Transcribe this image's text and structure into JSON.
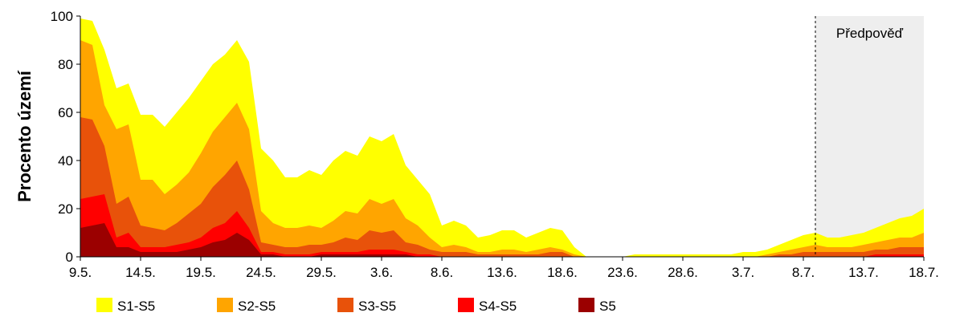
{
  "chart_data": {
    "type": "area",
    "stacked_cumulative": true,
    "ylabel": "Procento území",
    "ylim": [
      0,
      100
    ],
    "yticks": [
      0,
      20,
      40,
      60,
      80,
      100
    ],
    "x_start": "2019-05-09",
    "x_end": "2019-07-18",
    "xtick_labels": [
      "9.5.",
      "14.5.",
      "19.5.",
      "24.5.",
      "29.5.",
      "3.6.",
      "8.6.",
      "13.6.",
      "18.6.",
      "23.6.",
      "28.6.",
      "3.7.",
      "8.7.",
      "13.7.",
      "18.7."
    ],
    "forecast": {
      "label": "Předpověď",
      "start": "2019-07-09",
      "end": "2019-07-18"
    },
    "x": [
      "2019-05-09",
      "2019-05-10",
      "2019-05-11",
      "2019-05-12",
      "2019-05-13",
      "2019-05-14",
      "2019-05-15",
      "2019-05-16",
      "2019-05-17",
      "2019-05-18",
      "2019-05-19",
      "2019-05-20",
      "2019-05-21",
      "2019-05-22",
      "2019-05-23",
      "2019-05-24",
      "2019-05-25",
      "2019-05-26",
      "2019-05-27",
      "2019-05-28",
      "2019-05-29",
      "2019-05-30",
      "2019-05-31",
      "2019-06-01",
      "2019-06-02",
      "2019-06-03",
      "2019-06-04",
      "2019-06-05",
      "2019-06-06",
      "2019-06-07",
      "2019-06-08",
      "2019-06-09",
      "2019-06-10",
      "2019-06-11",
      "2019-06-12",
      "2019-06-13",
      "2019-06-14",
      "2019-06-15",
      "2019-06-16",
      "2019-06-17",
      "2019-06-18",
      "2019-06-19",
      "2019-06-20",
      "2019-06-21",
      "2019-06-22",
      "2019-06-23",
      "2019-06-24",
      "2019-06-25",
      "2019-06-26",
      "2019-06-27",
      "2019-06-28",
      "2019-06-29",
      "2019-06-30",
      "2019-07-01",
      "2019-07-02",
      "2019-07-03",
      "2019-07-04",
      "2019-07-05",
      "2019-07-06",
      "2019-07-07",
      "2019-07-08",
      "2019-07-09",
      "2019-07-10",
      "2019-07-11",
      "2019-07-12",
      "2019-07-13",
      "2019-07-14",
      "2019-07-15",
      "2019-07-16",
      "2019-07-17",
      "2019-07-18"
    ],
    "series": [
      {
        "name": "S1-S5",
        "color": "#FFFF00",
        "values": [
          99,
          98,
          86,
          70,
          72,
          59,
          59,
          54,
          60,
          66,
          73,
          80,
          84,
          90,
          81,
          45,
          40,
          33,
          33,
          36,
          34,
          40,
          44,
          42,
          50,
          48,
          51,
          38,
          32,
          26,
          13,
          15,
          13,
          8,
          9,
          11,
          11,
          8,
          10,
          12,
          11,
          4,
          0,
          0,
          0,
          0,
          1,
          1,
          1,
          1,
          1,
          1,
          1,
          1,
          1,
          2,
          2,
          3,
          5,
          7,
          9,
          10,
          8,
          8,
          9,
          10,
          12,
          14,
          16,
          17,
          20
        ]
      },
      {
        "name": "S2-S5",
        "color": "#FFA500",
        "values": [
          90,
          88,
          63,
          53,
          55,
          32,
          32,
          26,
          30,
          35,
          43,
          52,
          58,
          64,
          53,
          19,
          14,
          12,
          12,
          13,
          12,
          15,
          19,
          18,
          24,
          22,
          24,
          16,
          13,
          8,
          4,
          5,
          4,
          2,
          2,
          3,
          3,
          2,
          3,
          4,
          3,
          1,
          0,
          0,
          0,
          0,
          0,
          0,
          0,
          0,
          0,
          0,
          0,
          0,
          0,
          0,
          0,
          1,
          2,
          3,
          4,
          5,
          4,
          4,
          4,
          5,
          6,
          7,
          8,
          8,
          10
        ]
      },
      {
        "name": "S3-S5",
        "color": "#E8520A",
        "values": [
          58,
          57,
          46,
          22,
          25,
          13,
          12,
          11,
          14,
          18,
          22,
          29,
          34,
          40,
          28,
          6,
          5,
          4,
          4,
          5,
          5,
          6,
          8,
          7,
          11,
          10,
          11,
          6,
          5,
          3,
          2,
          2,
          2,
          1,
          1,
          1,
          1,
          1,
          1,
          2,
          2,
          0,
          0,
          0,
          0,
          0,
          0,
          0,
          0,
          0,
          0,
          0,
          0,
          0,
          0,
          0,
          0,
          0,
          1,
          1,
          2,
          2,
          2,
          2,
          2,
          2,
          3,
          3,
          4,
          4,
          4
        ]
      },
      {
        "name": "S4-S5",
        "color": "#FF0000",
        "values": [
          24,
          25,
          26,
          8,
          10,
          4,
          4,
          4,
          5,
          6,
          8,
          12,
          14,
          19,
          12,
          2,
          2,
          1,
          1,
          1,
          2,
          2,
          2,
          2,
          3,
          3,
          3,
          2,
          1,
          1,
          0,
          0,
          0,
          0,
          0,
          0,
          0,
          0,
          0,
          0,
          0,
          0,
          0,
          0,
          0,
          0,
          0,
          0,
          0,
          0,
          0,
          0,
          0,
          0,
          0,
          0,
          0,
          0,
          0,
          0,
          0,
          0,
          0,
          0,
          0,
          0,
          1,
          1,
          1,
          1,
          1
        ]
      },
      {
        "name": "S5",
        "color": "#9B0000",
        "values": [
          12,
          13,
          14,
          4,
          4,
          2,
          2,
          2,
          2,
          3,
          4,
          6,
          7,
          10,
          7,
          1,
          1,
          0,
          0,
          0,
          1,
          1,
          1,
          1,
          1,
          1,
          1,
          1,
          0,
          0,
          0,
          0,
          0,
          0,
          0,
          0,
          0,
          0,
          0,
          0,
          0,
          0,
          0,
          0,
          0,
          0,
          0,
          0,
          0,
          0,
          0,
          0,
          0,
          0,
          0,
          0,
          0,
          0,
          0,
          0,
          0,
          0,
          0,
          0,
          0,
          0,
          0,
          0,
          0,
          0,
          0
        ]
      }
    ]
  }
}
